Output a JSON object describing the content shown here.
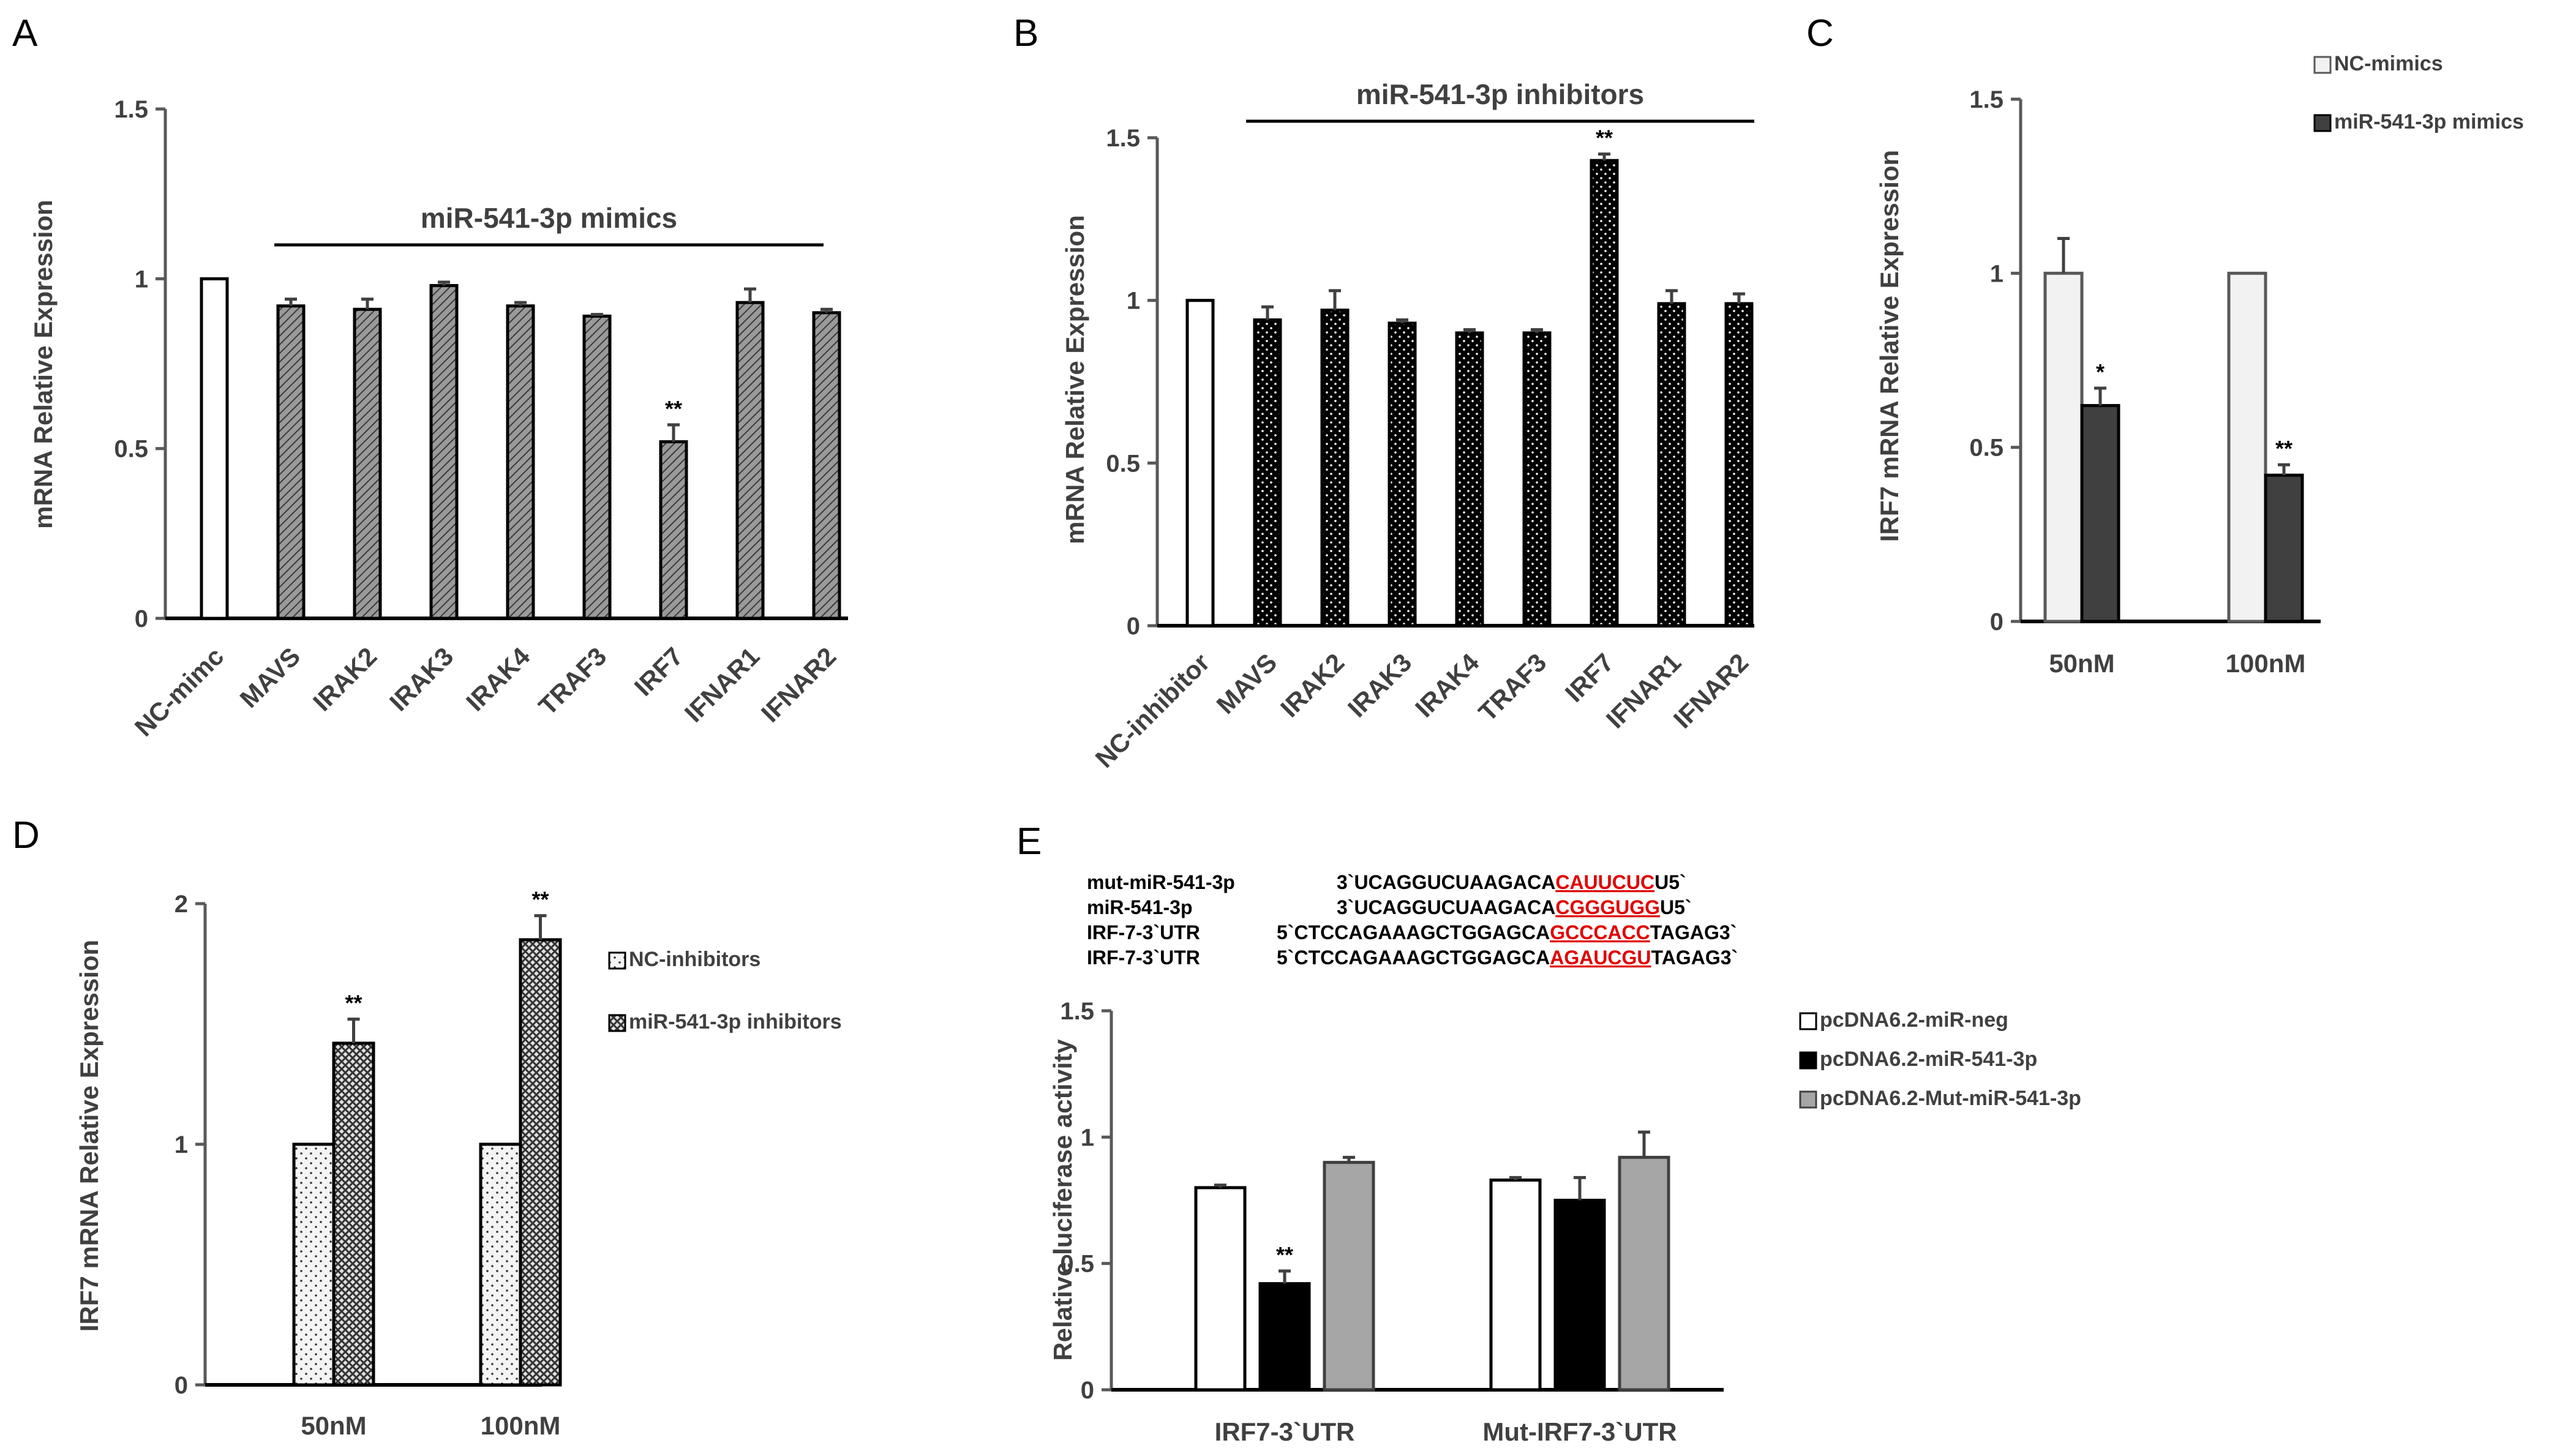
{
  "chart_data": [
    {
      "id": "A",
      "panel_label": "A",
      "type": "bar",
      "ylabel": "mRNA Relative  Expression",
      "ylim": [
        0,
        1.5
      ],
      "yticks": [
        "0",
        "0.5",
        "1",
        "1.5"
      ],
      "bracket_label": "miR-541-3p mimics",
      "categories": [
        "NC-mimc",
        "MAVS",
        "IRAK2",
        "IRAK3",
        "IRAK4",
        "TRAF3",
        "IRF7",
        "IFNAR1",
        "IFNAR2"
      ],
      "values": [
        1.0,
        0.92,
        0.91,
        0.98,
        0.92,
        0.89,
        0.52,
        0.93,
        0.9
      ],
      "errors": [
        0,
        0.02,
        0.03,
        0.01,
        0.01,
        0.005,
        0.05,
        0.04,
        0.01
      ],
      "significance": [
        "",
        "",
        "",
        "",
        "",
        "",
        "**",
        "",
        ""
      ],
      "fills": [
        "white",
        "hatch",
        "hatch",
        "hatch",
        "hatch",
        "hatch",
        "hatch",
        "hatch",
        "hatch"
      ]
    },
    {
      "id": "B",
      "panel_label": "B",
      "type": "bar",
      "ylabel": "mRNA Relative  Expression",
      "ylim": [
        0,
        1.5
      ],
      "yticks": [
        "0",
        "0.5",
        "1",
        "1.5"
      ],
      "bracket_label": "miR-541-3p inhibitors",
      "categories": [
        "NC-inhibitor",
        "MAVS",
        "IRAK2",
        "IRAK3",
        "IRAK4",
        "TRAF3",
        "IRF7",
        "IFNAR1",
        "IFNAR2"
      ],
      "values": [
        1.0,
        0.94,
        0.97,
        0.93,
        0.9,
        0.9,
        1.43,
        0.99,
        0.99
      ],
      "errors": [
        0,
        0.04,
        0.06,
        0.01,
        0.01,
        0.01,
        0.02,
        0.04,
        0.03
      ],
      "significance": [
        "",
        "",
        "",
        "",
        "",
        "",
        "**",
        "",
        ""
      ],
      "fills": [
        "white",
        "dots",
        "dots",
        "dots",
        "dots",
        "dots",
        "dots",
        "dots",
        "dots"
      ]
    },
    {
      "id": "C",
      "panel_label": "C",
      "type": "bar",
      "ylabel": "IRF7 mRNA Relative Expression",
      "ylim": [
        0,
        1.5
      ],
      "yticks": [
        "0",
        "0.5",
        "1",
        "1.5"
      ],
      "categories": [
        "50nM",
        "100nM"
      ],
      "series": [
        {
          "name": "NC-mimics",
          "values": [
            1.0,
            1.0
          ],
          "errors": [
            0.1,
            0
          ],
          "significance": [
            "",
            ""
          ],
          "fill": "light"
        },
        {
          "name": "miR-541-3p mimics",
          "values": [
            0.62,
            0.42
          ],
          "errors": [
            0.05,
            0.03
          ],
          "significance": [
            "*",
            "**"
          ],
          "fill": "dark"
        }
      ]
    },
    {
      "id": "D",
      "panel_label": "D",
      "type": "bar",
      "ylabel": "IRF7 mRNA Relative Expression",
      "ylim": [
        0,
        2
      ],
      "yticks": [
        "0",
        "1",
        "2"
      ],
      "categories": [
        "50nM",
        "100nM"
      ],
      "series": [
        {
          "name": "NC-inhibitors",
          "values": [
            1.0,
            1.0
          ],
          "errors": [
            0,
            0
          ],
          "significance": [
            "",
            ""
          ],
          "fill": "sparse-dots"
        },
        {
          "name": "miR-541-3p inhibitors",
          "values": [
            1.42,
            1.85
          ],
          "errors": [
            0.1,
            0.1
          ],
          "significance": [
            "**",
            "**"
          ],
          "fill": "crosshatch"
        }
      ]
    },
    {
      "id": "E",
      "panel_label": "E",
      "type": "bar",
      "ylabel": "Relative luciferase activity",
      "ylim": [
        0,
        1.5
      ],
      "yticks": [
        "0",
        "0.5",
        "1",
        "1.5"
      ],
      "categories": [
        "IRF7-3`UTR",
        "Mut-IRF7-3`UTR"
      ],
      "series": [
        {
          "name": "pcDNA6.2-miR-neg",
          "values": [
            0.8,
            0.83
          ],
          "errors": [
            0.01,
            0.01
          ],
          "significance": [
            "",
            ""
          ],
          "fill": "white"
        },
        {
          "name": "pcDNA6.2-miR-541-3p",
          "values": [
            0.42,
            0.75
          ],
          "errors": [
            0.05,
            0.09
          ],
          "significance": [
            "**",
            ""
          ],
          "fill": "black"
        },
        {
          "name": "pcDNA6.2-Mut-miR-541-3p",
          "values": [
            0.9,
            0.92
          ],
          "errors": [
            0.02,
            0.1
          ],
          "significance": [
            "",
            ""
          ],
          "fill": "gray"
        }
      ]
    }
  ],
  "sequences": [
    {
      "name": "mut-miR-541-3p",
      "prefix": "3`UCAGGUCUAAGACA",
      "highlight": "CAUUCUC",
      "suffix": "U5`"
    },
    {
      "name": "miR-541-3p",
      "prefix": "3`UCAGGUCUAAGACA",
      "highlight": "CGGGUGG",
      "suffix": "U5`"
    },
    {
      "name": "IRF-7-3`UTR",
      "prefix": "5`CTCCAGAAAGCTGGAGCA",
      "highlight": "GCCCACC",
      "suffix": "TAGAG3`"
    },
    {
      "name": "IRF-7-3`UTR",
      "prefix": "5`CTCCAGAAAGCTGGAGCA",
      "highlight": "AGAUCGU",
      "suffix": "TAGAG3`"
    }
  ]
}
